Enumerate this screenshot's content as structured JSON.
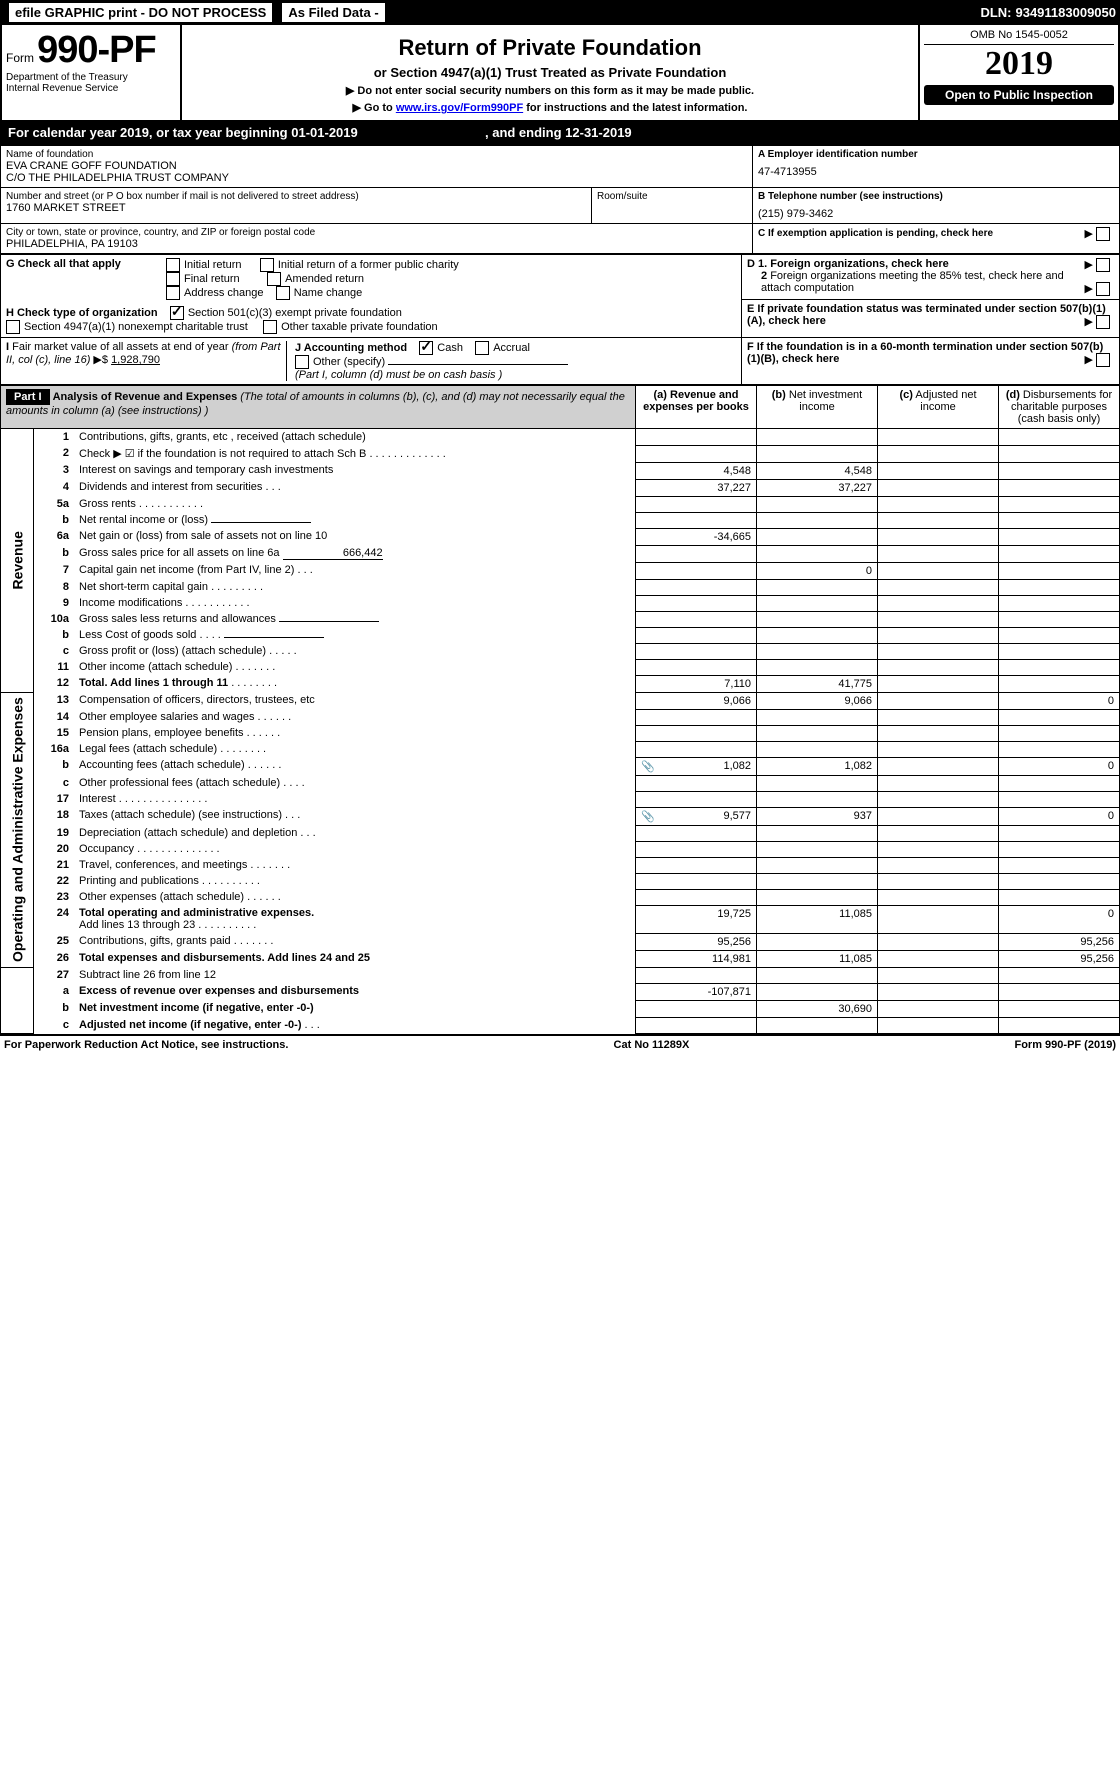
{
  "topbar": {
    "efile": "efile GRAPHIC print - DO NOT PROCESS",
    "asfiled": "As Filed Data -",
    "dln_label": "DLN:",
    "dln": "93491183009050"
  },
  "header": {
    "form_word": "Form",
    "form_num": "990-PF",
    "dept1": "Department of the Treasury",
    "dept2": "Internal Revenue Service",
    "title": "Return of Private Foundation",
    "subtitle": "or Section 4947(a)(1) Trust Treated as Private Foundation",
    "instr1": "▶ Do not enter social security numbers on this form as it may be made public.",
    "instr2_pre": "▶ Go to ",
    "instr2_link": "www.irs.gov/Form990PF",
    "instr2_post": " for instructions and the latest information.",
    "omb": "OMB No 1545-0052",
    "year": "2019",
    "open": "Open to Public Inspection"
  },
  "calendar": {
    "pre": "For calendar year 2019, or tax year beginning ",
    "begin": "01-01-2019",
    "mid": ", and ending ",
    "end": "12-31-2019"
  },
  "identity": {
    "name_lbl": "Name of foundation",
    "name1": "EVA CRANE GOFF FOUNDATION",
    "name2": "C/O THE PHILADELPHIA TRUST COMPANY",
    "addr_lbl": "Number and street (or P O  box number if mail is not delivered to street address)",
    "addr": "1760 MARKET STREET",
    "room_lbl": "Room/suite",
    "city_lbl": "City or town, state or province, country, and ZIP or foreign postal code",
    "city": "PHILADELPHIA, PA  19103",
    "a_lbl": "A Employer identification number",
    "a_val": "47-4713955",
    "b_lbl": "B Telephone number (see instructions)",
    "b_val": "(215) 979-3462",
    "c_lbl": "C If exemption application is pending, check here"
  },
  "checks": {
    "g_lbl": "G Check all that apply",
    "g1": "Initial return",
    "g2": "Initial return of a former public charity",
    "g3": "Final return",
    "g4": "Amended return",
    "g5": "Address change",
    "g6": "Name change",
    "h_lbl": "H Check type of organization",
    "h1": "Section 501(c)(3) exempt private foundation",
    "h2": "Section 4947(a)(1) nonexempt charitable trust",
    "h3": "Other taxable private foundation",
    "i_lbl": "I Fair market value of all assets at end of year (from Part II, col  (c), line 16) ▶$ ",
    "i_val": "1,928,790",
    "j_lbl": "J Accounting method",
    "j1": "Cash",
    "j2": "Accrual",
    "j3": "Other (specify)",
    "j_note": "(Part I, column (d) must be on cash basis )",
    "d1_lbl": "D 1. Foreign organizations, check here",
    "d2_lbl": "2 Foreign organizations meeting the 85% test, check here and attach computation",
    "e_lbl": "E  If private foundation status was terminated under section 507(b)(1)(A), check here",
    "f_lbl": "F  If the foundation is in a 60-month termination under section 507(b)(1)(B), check here"
  },
  "part1": {
    "label": "Part I",
    "title": "Analysis of Revenue and Expenses",
    "title_note": " (The total of amounts in columns (b), (c), and (d) may not necessarily equal the amounts in column (a) (see instructions) )",
    "col_a": "(a) Revenue and expenses per books",
    "col_b": "(b) Net investment income",
    "col_c": "(c) Adjusted net income",
    "col_d": "(d) Disbursements for charitable purposes (cash basis only)",
    "revenue_label": "Revenue",
    "expense_label": "Operating and Administrative Expenses"
  },
  "rows": [
    {
      "n": "1",
      "t": "Contributions, gifts, grants, etc , received (attach schedule)",
      "a": "",
      "b": "",
      "c": "",
      "d": ""
    },
    {
      "n": "2",
      "t": "Check ▶ ☑ if the foundation is not required to attach Sch  B",
      "dots": ". . . . . . . . . . . . .",
      "a": "",
      "b": "",
      "c": "",
      "d": "",
      "cb": true
    },
    {
      "n": "3",
      "t": "Interest on savings and temporary cash investments",
      "a": "4,548",
      "b": "4,548",
      "c": "",
      "d": ""
    },
    {
      "n": "4",
      "t": "Dividends and interest from securities",
      "dots": ". . .",
      "a": "37,227",
      "b": "37,227",
      "c": "",
      "d": ""
    },
    {
      "n": "5a",
      "t": "Gross rents",
      "dots": ". . . . . . . . . . .",
      "a": "",
      "b": "",
      "c": "",
      "d": ""
    },
    {
      "n": "b",
      "t": "Net rental income or (loss)",
      "a": "",
      "b": "",
      "c": "",
      "d": "",
      "inline": true
    },
    {
      "n": "6a",
      "t": "Net gain or (loss) from sale of assets not on line 10",
      "a": "-34,665",
      "b": "",
      "c": "",
      "d": ""
    },
    {
      "n": "b",
      "t": "Gross sales price for all assets on line 6a",
      "val": "666,442",
      "a": "",
      "b": "",
      "c": "",
      "d": "",
      "inline": true
    },
    {
      "n": "7",
      "t": "Capital gain net income (from Part IV, line 2)",
      "dots": ". . .",
      "a": "",
      "b": "0",
      "c": "",
      "d": ""
    },
    {
      "n": "8",
      "t": "Net short-term capital gain",
      "dots": ". . . . . . . . .",
      "a": "",
      "b": "",
      "c": "",
      "d": ""
    },
    {
      "n": "9",
      "t": "Income modifications",
      "dots": ". . . . . . . . . . .",
      "a": "",
      "b": "",
      "c": "",
      "d": ""
    },
    {
      "n": "10a",
      "t": "Gross sales less returns and allowances",
      "a": "",
      "b": "",
      "c": "",
      "d": "",
      "inline": true
    },
    {
      "n": "b",
      "t": "Less  Cost of goods sold",
      "dots": ". . . .",
      "a": "",
      "b": "",
      "c": "",
      "d": "",
      "inline": true
    },
    {
      "n": "c",
      "t": "Gross profit or (loss) (attach schedule)",
      "dots": ". . . . .",
      "a": "",
      "b": "",
      "c": "",
      "d": ""
    },
    {
      "n": "11",
      "t": "Other income (attach schedule)",
      "dots": ". . . . . . .",
      "a": "",
      "b": "",
      "c": "",
      "d": ""
    },
    {
      "n": "12",
      "t": "Total. Add lines 1 through 11",
      "dots": ". . . . . . . .",
      "a": "7,110",
      "b": "41,775",
      "c": "",
      "d": "",
      "bold": true
    }
  ],
  "exp_rows": [
    {
      "n": "13",
      "t": "Compensation of officers, directors, trustees, etc",
      "a": "9,066",
      "b": "9,066",
      "c": "",
      "d": "0"
    },
    {
      "n": "14",
      "t": "Other employee salaries and wages",
      "dots": ". . . . . .",
      "a": "",
      "b": "",
      "c": "",
      "d": ""
    },
    {
      "n": "15",
      "t": "Pension plans, employee benefits",
      "dots": ". . . . . .",
      "a": "",
      "b": "",
      "c": "",
      "d": ""
    },
    {
      "n": "16a",
      "t": "Legal fees (attach schedule)",
      "dots": ". . . . . . . .",
      "a": "",
      "b": "",
      "c": "",
      "d": ""
    },
    {
      "n": "b",
      "t": "Accounting fees (attach schedule)",
      "dots": ". . . . . .",
      "icon": true,
      "a": "1,082",
      "b": "1,082",
      "c": "",
      "d": "0"
    },
    {
      "n": "c",
      "t": "Other professional fees (attach schedule)",
      "dots": ". . . .",
      "a": "",
      "b": "",
      "c": "",
      "d": ""
    },
    {
      "n": "17",
      "t": "Interest",
      "dots": ". . . . . . . . . . . . . . .",
      "a": "",
      "b": "",
      "c": "",
      "d": ""
    },
    {
      "n": "18",
      "t": "Taxes (attach schedule) (see instructions)",
      "dots": ". . .",
      "icon": true,
      "a": "9,577",
      "b": "937",
      "c": "",
      "d": "0"
    },
    {
      "n": "19",
      "t": "Depreciation (attach schedule) and depletion",
      "dots": ". . .",
      "a": "",
      "b": "",
      "c": "",
      "d": ""
    },
    {
      "n": "20",
      "t": "Occupancy",
      "dots": ". . . . . . . . . . . . . .",
      "a": "",
      "b": "",
      "c": "",
      "d": ""
    },
    {
      "n": "21",
      "t": "Travel, conferences, and meetings",
      "dots": ". . . . . . .",
      "a": "",
      "b": "",
      "c": "",
      "d": ""
    },
    {
      "n": "22",
      "t": "Printing and publications",
      "dots": ". . . . . . . . . .",
      "a": "",
      "b": "",
      "c": "",
      "d": ""
    },
    {
      "n": "23",
      "t": "Other expenses (attach schedule)",
      "dots": ". . . . . .",
      "a": "",
      "b": "",
      "c": "",
      "d": ""
    },
    {
      "n": "24",
      "t": "Total operating and administrative expenses.",
      "t2": "Add lines 13 through 23",
      "dots": ". . . . . . . . . .",
      "a": "19,725",
      "b": "11,085",
      "c": "",
      "d": "0",
      "bold": true
    },
    {
      "n": "25",
      "t": "Contributions, gifts, grants paid",
      "dots": ". . . . . . .",
      "a": "95,256",
      "b": "",
      "c": "",
      "d": "95,256"
    },
    {
      "n": "26",
      "t": "Total expenses and disbursements. Add lines 24 and 25",
      "a": "114,981",
      "b": "11,085",
      "c": "",
      "d": "95,256",
      "bold": true
    }
  ],
  "net_rows": [
    {
      "n": "27",
      "t": "Subtract line 26 from line 12",
      "a": "",
      "b": "",
      "c": "",
      "d": ""
    },
    {
      "n": "a",
      "t": "Excess of revenue over expenses and disbursements",
      "a": "-107,871",
      "b": "",
      "c": "",
      "d": "",
      "bold": true
    },
    {
      "n": "b",
      "t": "Net investment income (if negative, enter -0-)",
      "a": "",
      "b": "30,690",
      "c": "",
      "d": "",
      "bold": true
    },
    {
      "n": "c",
      "t": "Adjusted net income (if negative, enter -0-)",
      "dots": ". . .",
      "a": "",
      "b": "",
      "c": "",
      "d": "",
      "bold": true
    }
  ],
  "footer": {
    "left": "For Paperwork Reduction Act Notice, see instructions.",
    "mid": "Cat  No  11289X",
    "right": "Form 990-PF (2019)"
  }
}
